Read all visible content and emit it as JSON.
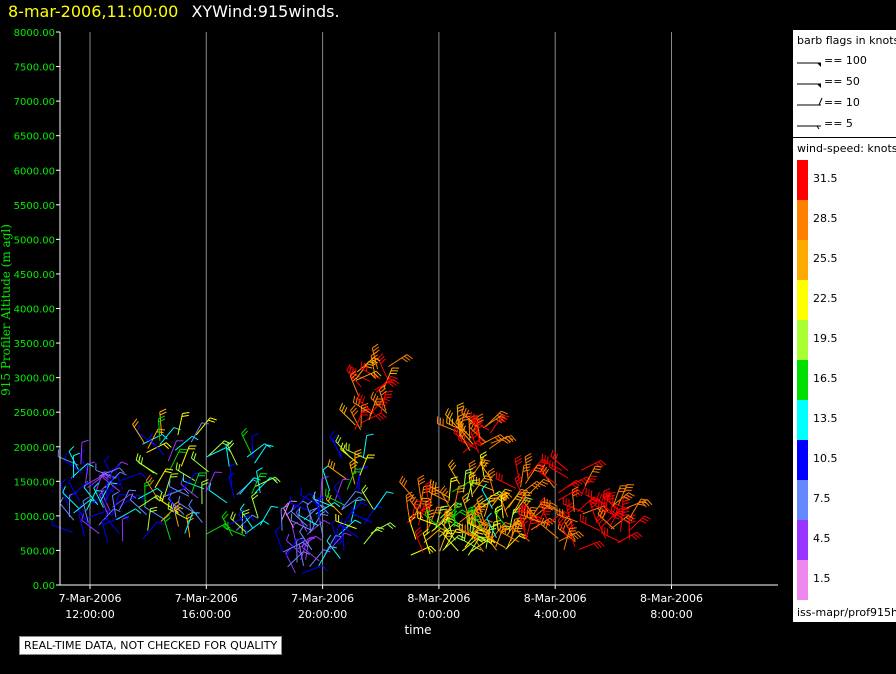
{
  "header": {
    "time": "8-mar-2006,11:00:00",
    "name": "XYWind:915winds."
  },
  "chart_data": {
    "type": "wind-barb-scatter",
    "ylabel": "915 Profiler Altitude (m agl)",
    "xlabel": "time",
    "yticks": [
      "0.00",
      "500.00",
      "1000.00",
      "1500.00",
      "2000.00",
      "2500.00",
      "3000.00",
      "3500.00",
      "4000.00",
      "4500.00",
      "5000.00",
      "5500.00",
      "6000.00",
      "6500.00",
      "7000.00",
      "7500.00",
      "8000.00"
    ],
    "ylim": [
      0,
      8000
    ],
    "xticks": [
      {
        "date": "7-Mar-2006",
        "time": "12:00:00"
      },
      {
        "date": "7-Mar-2006",
        "time": "16:00:00"
      },
      {
        "date": "7-Mar-2006",
        "time": "20:00:00"
      },
      {
        "date": "8-Mar-2006",
        "time": "0:00:00"
      },
      {
        "date": "8-Mar-2006",
        "time": "4:00:00"
      },
      {
        "date": "8-Mar-2006",
        "time": "8:00:00"
      }
    ],
    "xlim_hours": [
      11,
      27.5
    ],
    "vertical_grid": true,
    "clusters": [
      {
        "t": 11.7,
        "alt_min": 600,
        "alt_max": 1800,
        "spd_min": 3,
        "spd_max": 15
      },
      {
        "t": 12.8,
        "alt_min": 600,
        "alt_max": 1700,
        "spd_min": 3,
        "spd_max": 14
      },
      {
        "t": 14.2,
        "alt_min": 600,
        "alt_max": 2200,
        "spd_min": 5,
        "spd_max": 30
      },
      {
        "t": 15.5,
        "alt_min": 600,
        "alt_max": 2200,
        "spd_min": 5,
        "spd_max": 27
      },
      {
        "t": 17.3,
        "alt_min": 700,
        "alt_max": 2000,
        "spd_min": 7,
        "spd_max": 20
      },
      {
        "t": 19.0,
        "alt_min": 150,
        "alt_max": 1100,
        "spd_min": 2,
        "spd_max": 11
      },
      {
        "t": 20.2,
        "alt_min": 250,
        "alt_max": 1400,
        "spd_min": 3,
        "spd_max": 14
      },
      {
        "t": 21.2,
        "alt_min": 500,
        "alt_max": 2000,
        "spd_min": 9,
        "spd_max": 28
      },
      {
        "t": 21.7,
        "alt_min": 2200,
        "alt_max": 3200,
        "spd_min": 25,
        "spd_max": 33
      },
      {
        "t": 23.5,
        "alt_min": 400,
        "alt_max": 1300,
        "spd_min": 20,
        "spd_max": 33
      },
      {
        "t": 24.6,
        "alt_min": 400,
        "alt_max": 1500,
        "spd_min": 15,
        "spd_max": 30
      },
      {
        "t": 25.4,
        "alt_min": 400,
        "alt_max": 1600,
        "spd_min": 19,
        "spd_max": 30
      },
      {
        "t": 25.2,
        "alt_min": 1900,
        "alt_max": 2300,
        "spd_min": 26,
        "spd_max": 33
      },
      {
        "t": 26.0,
        "alt_min": 500,
        "alt_max": 1200,
        "spd_min": 12,
        "spd_max": 30
      },
      {
        "t": 27.2,
        "alt_min": 500,
        "alt_max": 1700,
        "spd_min": 28,
        "spd_max": 33
      },
      {
        "t": 28.5,
        "alt_min": 500,
        "alt_max": 1700,
        "spd_min": 28,
        "spd_max": 33
      },
      {
        "t": 30.0,
        "alt_min": 600,
        "alt_max": 1200,
        "spd_min": 29,
        "spd_max": 33
      }
    ]
  },
  "barb_legend": {
    "title": "barb flags in knots",
    "items": [
      {
        "label": "== 100",
        "kind": "flag"
      },
      {
        "label": "== 50",
        "kind": "flag"
      },
      {
        "label": "== 10",
        "kind": "full"
      },
      {
        "label": "== 5",
        "kind": "half"
      }
    ]
  },
  "colorbar": {
    "title": "wind-speed: knots",
    "items": [
      {
        "label": "31.5",
        "color": "#ff0000"
      },
      {
        "label": "28.5",
        "color": "#ff7f00"
      },
      {
        "label": "25.5",
        "color": "#ffaa00"
      },
      {
        "label": "22.5",
        "color": "#ffff00"
      },
      {
        "label": "19.5",
        "color": "#aaff33"
      },
      {
        "label": "16.5",
        "color": "#00dd00"
      },
      {
        "label": "13.5",
        "color": "#00ffff"
      },
      {
        "label": "10.5",
        "color": "#0000ff"
      },
      {
        "label": "7.5",
        "color": "#6688ff"
      },
      {
        "label": "4.5",
        "color": "#9933ff"
      },
      {
        "label": "1.5",
        "color": "#ee88ee"
      }
    ]
  },
  "footer": {
    "text": "iss-mapr/prof915h"
  },
  "notice": {
    "text": "REAL-TIME DATA, NOT CHECKED FOR QUALITY"
  }
}
